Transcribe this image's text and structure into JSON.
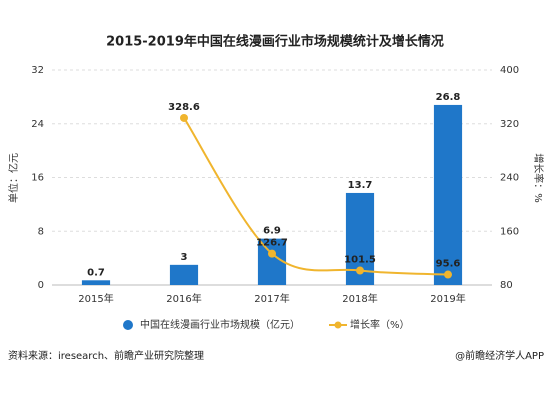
{
  "chart_data": {
    "type": "bar",
    "title": "2015-2019年中国在线漫画行业市场规模统计及增长情况",
    "ylabel": "单位：亿元",
    "y2label": "增长率：%",
    "categories": [
      "2015年",
      "2016年",
      "2017年",
      "2018年",
      "2019年"
    ],
    "series": [
      {
        "name": "中国在线漫画行业市场规模（亿元）",
        "type": "bar",
        "color": "#1f77c9",
        "values": [
          0.7,
          3,
          6.9,
          13.7,
          26.8
        ]
      },
      {
        "name": "增长率（%）",
        "type": "line",
        "color": "#f0b52e",
        "axis": "y2",
        "values": [
          null,
          328.6,
          126.7,
          101.5,
          95.6
        ]
      }
    ],
    "ylim": [
      0,
      32
    ],
    "yticks": [
      0,
      8,
      16,
      24,
      32
    ],
    "y2lim": [
      80,
      400
    ],
    "y2ticks": [
      80,
      160,
      240,
      320,
      400
    ],
    "grid": true
  },
  "footer": {
    "source": "资料来源：iresearch、前瞻产业研究院整理",
    "credit": "@前瞻经济学人APP"
  }
}
